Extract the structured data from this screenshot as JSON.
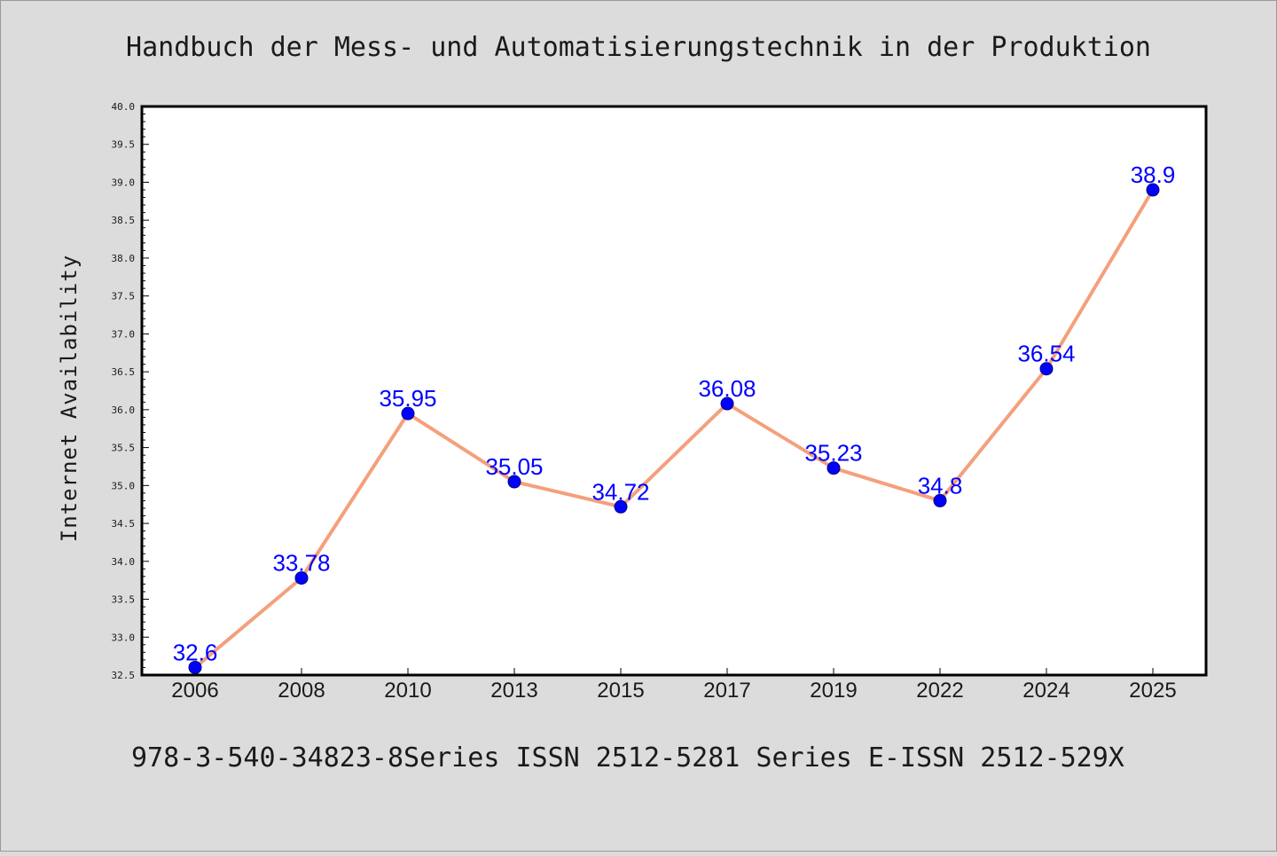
{
  "chart_data": {
    "type": "line",
    "title": "Handbuch der Mess- und Automatisierungstechnik in der Produktion",
    "footer": "978-3-540-34823-8Series ISSN 2512-5281 Series E-ISSN 2512-529X",
    "xlabel": "",
    "ylabel": "Internet Availability",
    "categories": [
      "2006",
      "2008",
      "2010",
      "2013",
      "2015",
      "2017",
      "2019",
      "2022",
      "2024",
      "2025"
    ],
    "series": [
      {
        "values": [
          32.6,
          33.78,
          35.95,
          35.05,
          34.72,
          36.08,
          35.23,
          34.8,
          36.54,
          38.9
        ],
        "labels": [
          "32.6",
          "33.78",
          "35.95",
          "35.05",
          "34.72",
          "36.08",
          "35.23",
          "34.8",
          "36.54",
          "38.9"
        ]
      }
    ],
    "ylim": [
      32.5,
      40.0
    ],
    "yticks": [
      "32.5",
      "33.0",
      "33.5",
      "34.0",
      "34.5",
      "35.0",
      "35.5",
      "36.0",
      "36.5",
      "37.0",
      "37.5",
      "38.0",
      "38.5",
      "39.0",
      "39.5",
      "40.0"
    ],
    "grid": false,
    "colors": {
      "background": "#dcdcdc",
      "plot_area": "#ffffff",
      "line": "#f4a07c",
      "marker": "#0000ff",
      "data_label": "#0000ff",
      "text": "#1a1a1a"
    }
  }
}
